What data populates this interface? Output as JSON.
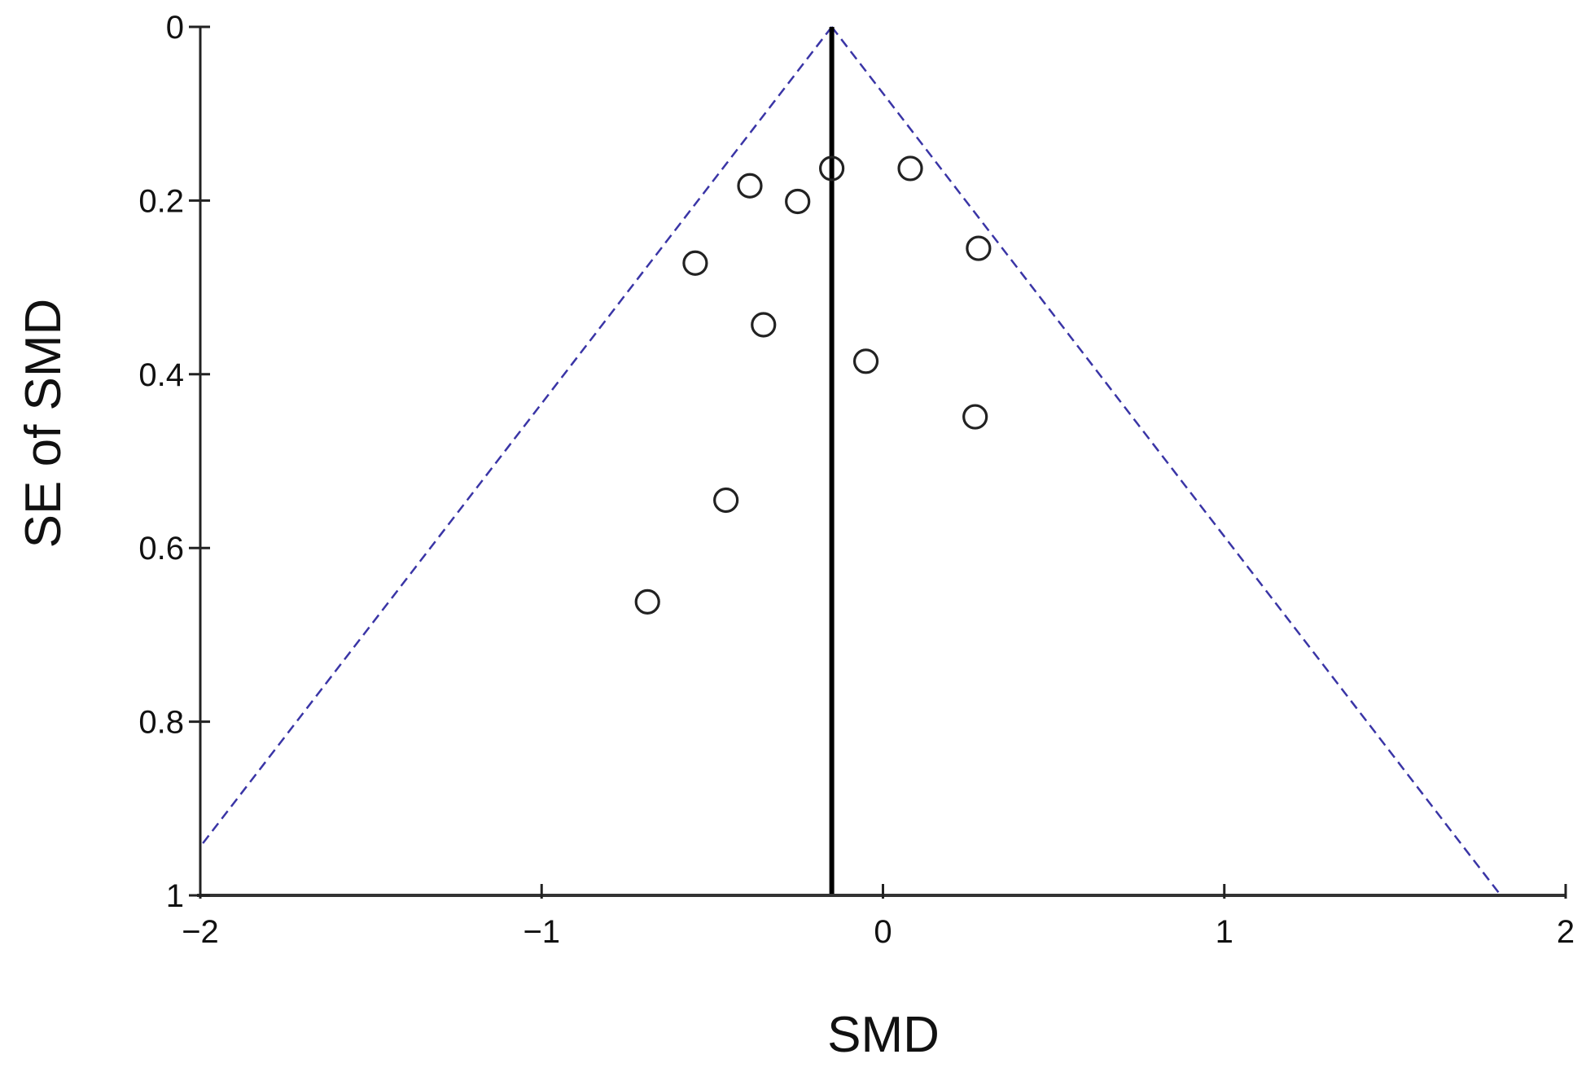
{
  "chart_data": {
    "type": "scatter",
    "subtype": "funnel-plot",
    "title": "",
    "xlabel": "SMD",
    "ylabel": "SE of SMD",
    "xlim": [
      -2,
      2
    ],
    "ylim": [
      0,
      1
    ],
    "y_inverted": true,
    "grid": false,
    "x_ticks": [
      "-2",
      "-1",
      "0",
      "1",
      "2"
    ],
    "x_tick_values": [
      -2,
      -1,
      0,
      1,
      2
    ],
    "y_ticks": [
      "0",
      "0.2",
      "0.4",
      "0.6",
      "0.8",
      "1"
    ],
    "y_tick_values": [
      0,
      0.2,
      0.4,
      0.6,
      0.8,
      1
    ],
    "pooled_effect": -0.15,
    "funnel_multiplier": 1.96,
    "colors": {
      "funnel": "#3a35a6",
      "points": "#222222",
      "pooled_line": "#000000"
    },
    "points": [
      {
        "smd": -0.15,
        "se": 0.163
      },
      {
        "smd": 0.08,
        "se": 0.163
      },
      {
        "smd": -0.39,
        "se": 0.183
      },
      {
        "smd": -0.25,
        "se": 0.201
      },
      {
        "smd": 0.28,
        "se": 0.255
      },
      {
        "smd": -0.55,
        "se": 0.272
      },
      {
        "smd": -0.35,
        "se": 0.343
      },
      {
        "smd": -0.05,
        "se": 0.385
      },
      {
        "smd": 0.27,
        "se": 0.449
      },
      {
        "smd": -0.46,
        "se": 0.545
      },
      {
        "smd": -0.69,
        "se": 0.662
      }
    ]
  }
}
